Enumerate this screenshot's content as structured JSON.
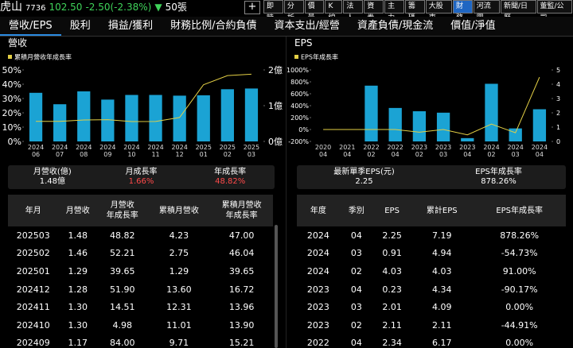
{
  "header": {
    "name": "虎山",
    "code": "7736",
    "price": "102.50",
    "change": "-2.50(-2.38%)",
    "arrow": "▼",
    "volume": "50張",
    "add": "+"
  },
  "toolbar": {
    "items": [
      "即時",
      "分析",
      "價量",
      "K線",
      "法人",
      "資券",
      "主力",
      "籌碼",
      "大股東",
      "財務",
      "河流圖",
      "新聞/日曆",
      "董監/公司"
    ],
    "active": 9
  },
  "tabs": {
    "items": [
      "營收/EPS",
      "股利",
      "損益/獲利",
      "財務比例/合約負債",
      "資本支出/經營",
      "資產負債/現金流",
      "價值/淨值"
    ],
    "active": 0
  },
  "revenue_panel": {
    "chart": {
      "type": "bar",
      "title": "營收",
      "categories": [
        "2024\n06",
        "2024\n07",
        "2024\n08",
        "2024\n09",
        "2024\n10",
        "2024\n11",
        "2024\n12",
        "2025\n01",
        "2025\n02",
        "2025\n03"
      ],
      "series": [
        {
          "type": "bar",
          "color": "#1ba3d4",
          "axis": "y2",
          "values": [
            1.36,
            1.04,
            1.4,
            1.17,
            1.3,
            1.3,
            1.28,
            1.29,
            1.46,
            1.48
          ]
        },
        {
          "type": "line",
          "name": "累積月營收年成長率",
          "color": "#e3cf45",
          "values": [
            14,
            14,
            15,
            15.21,
            13.9,
            13.96,
            16.72,
            39.65,
            46.04,
            47.0
          ]
        }
      ],
      "ylim": [
        0,
        50
      ],
      "yticks": [
        {
          "value": 0,
          "label": "0%"
        },
        {
          "value": 10,
          "label": "10%"
        },
        {
          "value": 20,
          "label": "20%"
        },
        {
          "value": 30,
          "label": "30%"
        },
        {
          "value": 40,
          "label": "40%"
        },
        {
          "value": 50,
          "label": "50%"
        }
      ],
      "y2lim": [
        0,
        2
      ],
      "y2ticks": [
        {
          "value": 0,
          "label": "0億"
        },
        {
          "value": 1,
          "label": "1億"
        },
        {
          "value": 2,
          "label": "2億"
        }
      ]
    },
    "summary": [
      {
        "label": "月營收(億)",
        "value": "1.48億"
      },
      {
        "label": "月成長率",
        "value": "1.66%"
      },
      {
        "label": "年成長率",
        "value": "48.82%"
      }
    ],
    "table": {
      "columns": [
        "年月",
        "月營收",
        "月營收\n年成長率",
        "累積月營收",
        "累積月營收\n年成長率"
      ],
      "rows": [
        [
          "202503",
          "1.48",
          "48.82",
          "4.23",
          "47.00"
        ],
        [
          "202502",
          "1.46",
          "52.21",
          "2.75",
          "46.04"
        ],
        [
          "202501",
          "1.29",
          "39.65",
          "1.29",
          "39.65"
        ],
        [
          "202412",
          "1.28",
          "51.90",
          "13.60",
          "16.72"
        ],
        [
          "202411",
          "1.30",
          "14.51",
          "12.31",
          "13.96"
        ],
        [
          "202410",
          "1.30",
          "4.98",
          "11.01",
          "13.90"
        ],
        [
          "202409",
          "1.17",
          "84.00",
          "9.71",
          "15.21"
        ]
      ]
    }
  },
  "eps_panel": {
    "chart": {
      "type": "bar",
      "title": "EPS",
      "categories": [
        "2020\n04",
        "2021\n04",
        "2022\n02",
        "2022\n04",
        "2023\n02",
        "2023\n03",
        "2023\n04",
        "2024\n02",
        "2024\n03",
        "2024\n04"
      ],
      "series": [
        {
          "type": "bar",
          "color": "#1ba3d4",
          "axis": "y2",
          "values": [
            null,
            null,
            3.9,
            2.34,
            2.11,
            2.01,
            0.23,
            4.03,
            0.91,
            2.25
          ]
        },
        {
          "type": "line",
          "name": "EPS年成長率",
          "color": "#e3cf45",
          "values": [
            0,
            0,
            0,
            0,
            -44.91,
            0,
            -90.17,
            91,
            -54.73,
            878.26
          ]
        }
      ],
      "ylim": [
        -200,
        1000
      ],
      "yticks": [
        {
          "value": -200,
          "label": "-200%"
        },
        {
          "value": 0,
          "label": "0%"
        },
        {
          "value": 200,
          "label": "200%"
        },
        {
          "value": 400,
          "label": "400%"
        },
        {
          "value": 600,
          "label": "600%"
        },
        {
          "value": 800,
          "label": "800%"
        },
        {
          "value": 1000,
          "label": "1000%"
        }
      ],
      "y2lim": [
        0,
        5
      ],
      "y2ticks": [
        0,
        1,
        2,
        3,
        4,
        5
      ]
    },
    "summary": [
      {
        "label": "最新單季EPS(元)",
        "value": "2.25"
      },
      {
        "label": "EPS年成長率",
        "value": "878.26%"
      }
    ],
    "table": {
      "columns": [
        "年度",
        "季別",
        "EPS",
        "累計EPS",
        "EPS年成長率"
      ],
      "rows": [
        [
          "2024",
          "04",
          "2.25",
          "7.19",
          "878.26%"
        ],
        [
          "2024",
          "03",
          "0.91",
          "4.94",
          "-54.73%"
        ],
        [
          "2024",
          "02",
          "4.03",
          "4.03",
          "91.00%"
        ],
        [
          "2023",
          "04",
          "0.23",
          "4.34",
          "-90.17%"
        ],
        [
          "2023",
          "03",
          "2.01",
          "4.09",
          "0.00%"
        ],
        [
          "2023",
          "02",
          "2.11",
          "2.11",
          "-44.91%"
        ],
        [
          "2022",
          "04",
          "2.34",
          "6.17",
          "0.00%"
        ]
      ]
    }
  }
}
